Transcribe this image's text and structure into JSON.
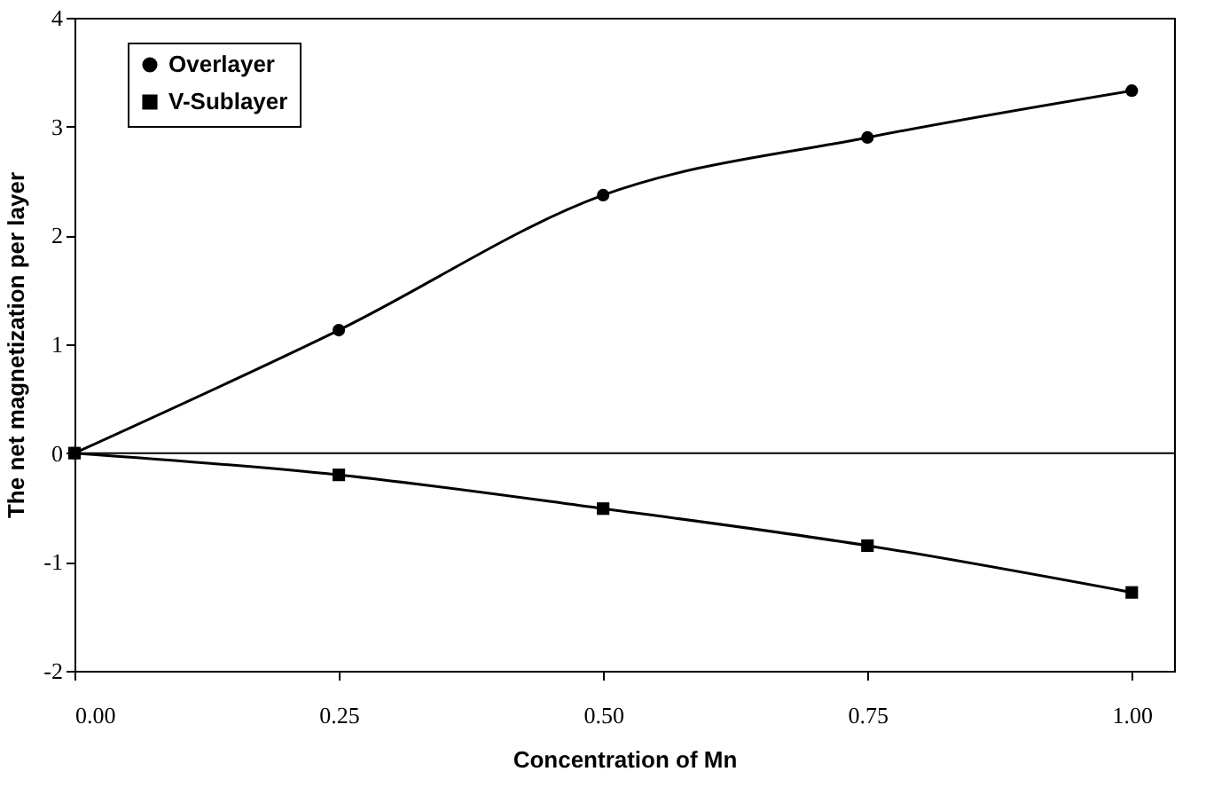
{
  "chart_data": {
    "type": "line",
    "xlabel": "Concentration of Mn",
    "ylabel": "The net magnetization per layer",
    "x": [
      0,
      0.25,
      0.5,
      0.75,
      1
    ],
    "series": [
      {
        "name": "Overlayer",
        "color": "#000000",
        "marker": "circle",
        "values": [
          0,
          1.13,
          2.37,
          2.9,
          3.33
        ]
      },
      {
        "name": "V-Sublayer",
        "color": "#000000",
        "marker": "square",
        "values": [
          0,
          -0.2,
          -0.51,
          -0.85,
          -1.28
        ]
      }
    ],
    "xlim": [
      0,
      1.04
    ],
    "xticks": [
      {
        "value": 0,
        "label": "0.00"
      },
      {
        "value": 0.25,
        "label": "0.25"
      },
      {
        "value": 0.5,
        "label": "0.50"
      },
      {
        "value": 0.75,
        "label": "0.75"
      },
      {
        "value": 1,
        "label": "1.00"
      }
    ],
    "ylim": [
      -2,
      4
    ],
    "yticks": [
      -2,
      -1,
      0,
      1,
      2,
      3,
      4
    ],
    "ref_lines": [
      {
        "axis": "y",
        "value": 0,
        "color": "#000000"
      }
    ],
    "legend": "top left",
    "grid": false,
    "line_style": "solid"
  }
}
